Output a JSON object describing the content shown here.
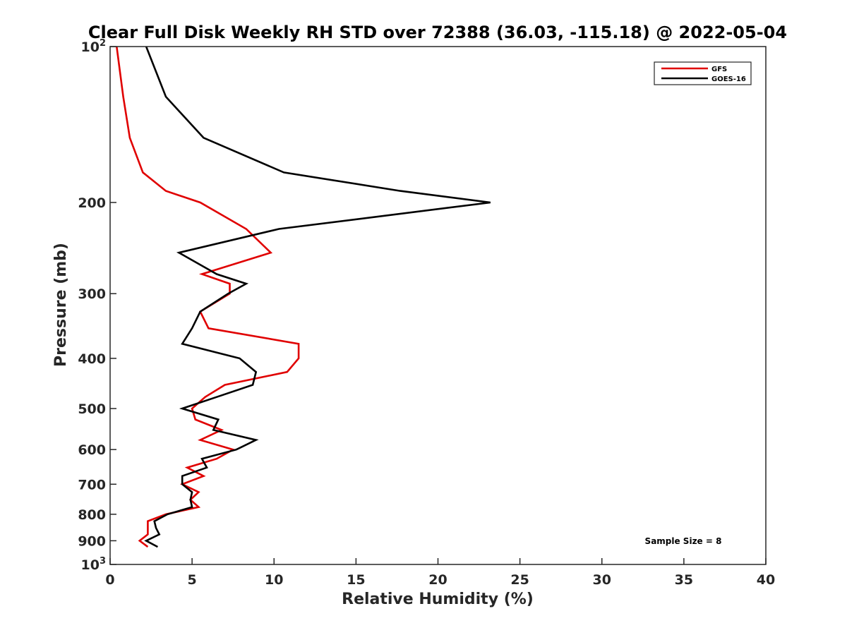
{
  "chart_data": {
    "type": "line",
    "title": "Clear Full Disk Weekly RH STD over 72388 (36.03, -115.18) @ 2022-05-04",
    "xlabel": "Relative Humidity (%)",
    "ylabel": "Pressure (mb)",
    "xlim": [
      0,
      40
    ],
    "ylim": [
      100,
      1000
    ],
    "yscale": "log",
    "y_reversed": true,
    "xticks": [
      "0",
      "5",
      "10",
      "15",
      "20",
      "25",
      "30",
      "35",
      "40"
    ],
    "yticks": [
      {
        "value": 100,
        "base": "10",
        "exp": "2"
      },
      {
        "value": 200,
        "label": "200"
      },
      {
        "value": 300,
        "label": "300"
      },
      {
        "value": 400,
        "label": "400"
      },
      {
        "value": 500,
        "label": "500"
      },
      {
        "value": 600,
        "label": "600"
      },
      {
        "value": 700,
        "label": "700"
      },
      {
        "value": 800,
        "label": "800"
      },
      {
        "value": 900,
        "label": "900"
      },
      {
        "value": 1000,
        "base": "10",
        "exp": "3"
      }
    ],
    "grid": false,
    "legend_position": "top-right",
    "annotation": "Sample Size = 8",
    "series": [
      {
        "name": "GFS",
        "color": "#e00000",
        "points": [
          [
            0.4,
            100
          ],
          [
            0.8,
            125
          ],
          [
            1.2,
            150
          ],
          [
            2.0,
            175
          ],
          [
            3.4,
            190
          ],
          [
            5.5,
            200
          ],
          [
            8.3,
            225
          ],
          [
            9.8,
            250
          ],
          [
            5.6,
            275
          ],
          [
            7.3,
            287
          ],
          [
            7.3,
            300
          ],
          [
            5.5,
            325
          ],
          [
            6.0,
            350
          ],
          [
            11.5,
            375
          ],
          [
            11.5,
            400
          ],
          [
            10.8,
            425
          ],
          [
            7.0,
            450
          ],
          [
            5.8,
            475
          ],
          [
            5.0,
            500
          ],
          [
            5.2,
            525
          ],
          [
            6.8,
            550
          ],
          [
            5.5,
            575
          ],
          [
            7.5,
            600
          ],
          [
            6.5,
            625
          ],
          [
            4.7,
            650
          ],
          [
            5.7,
            675
          ],
          [
            4.4,
            700
          ],
          [
            5.4,
            725
          ],
          [
            4.9,
            750
          ],
          [
            5.4,
            775
          ],
          [
            3.4,
            800
          ],
          [
            2.3,
            825
          ],
          [
            2.3,
            850
          ],
          [
            2.3,
            875
          ],
          [
            1.8,
            900
          ],
          [
            2.3,
            925
          ]
        ]
      },
      {
        "name": "GOES-16",
        "color": "#000000",
        "points": [
          [
            2.2,
            100
          ],
          [
            3.4,
            125
          ],
          [
            5.7,
            150
          ],
          [
            10.6,
            175
          ],
          [
            17.7,
            190
          ],
          [
            23.2,
            200
          ],
          [
            10.3,
            225
          ],
          [
            4.2,
            250
          ],
          [
            6.5,
            275
          ],
          [
            8.3,
            287
          ],
          [
            7.2,
            300
          ],
          [
            5.5,
            325
          ],
          [
            5.0,
            350
          ],
          [
            4.4,
            375
          ],
          [
            7.9,
            400
          ],
          [
            8.9,
            425
          ],
          [
            8.7,
            450
          ],
          [
            6.5,
            475
          ],
          [
            4.4,
            500
          ],
          [
            6.6,
            525
          ],
          [
            6.3,
            550
          ],
          [
            8.9,
            575
          ],
          [
            7.7,
            600
          ],
          [
            5.6,
            625
          ],
          [
            5.9,
            650
          ],
          [
            4.4,
            675
          ],
          [
            4.4,
            700
          ],
          [
            5.0,
            725
          ],
          [
            4.9,
            750
          ],
          [
            5.0,
            775
          ],
          [
            3.5,
            800
          ],
          [
            2.7,
            825
          ],
          [
            2.8,
            850
          ],
          [
            3.0,
            875
          ],
          [
            2.2,
            900
          ],
          [
            2.9,
            925
          ]
        ]
      }
    ]
  }
}
